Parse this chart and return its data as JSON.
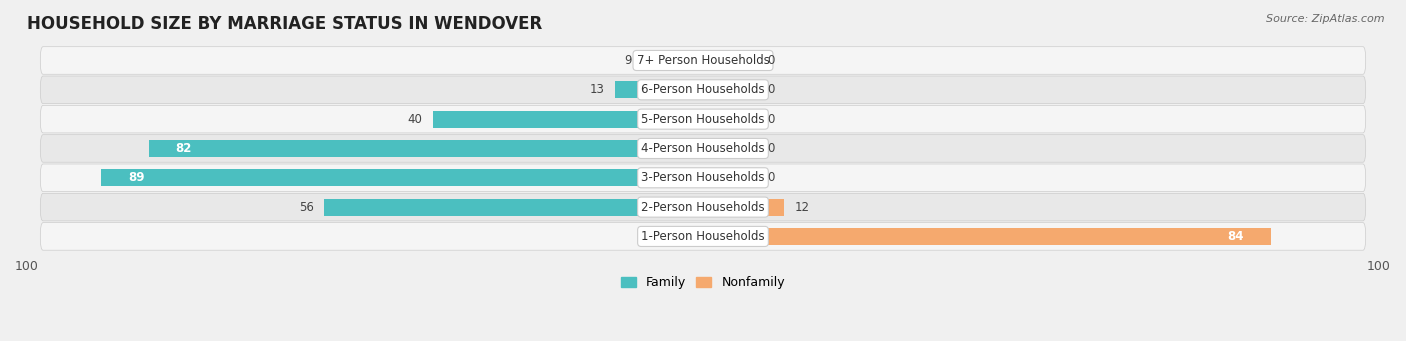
{
  "title": "HOUSEHOLD SIZE BY MARRIAGE STATUS IN WENDOVER",
  "source": "Source: ZipAtlas.com",
  "categories": [
    "7+ Person Households",
    "6-Person Households",
    "5-Person Households",
    "4-Person Households",
    "3-Person Households",
    "2-Person Households",
    "1-Person Households"
  ],
  "family_values": [
    9,
    13,
    40,
    82,
    89,
    56,
    0
  ],
  "nonfamily_values": [
    0,
    0,
    0,
    0,
    0,
    12,
    84
  ],
  "family_color": "#4BBFC0",
  "nonfamily_color": "#F5A96E",
  "bar_height": 0.58,
  "xlim": 100,
  "background_color": "#f0f0f0",
  "row_bg_colors": [
    "#f5f5f5",
    "#e8e8e8"
  ],
  "title_fontsize": 12,
  "label_fontsize": 8.5,
  "tick_fontsize": 9,
  "source_fontsize": 8,
  "legend_fontsize": 9,
  "nonfamily_stub": 8
}
